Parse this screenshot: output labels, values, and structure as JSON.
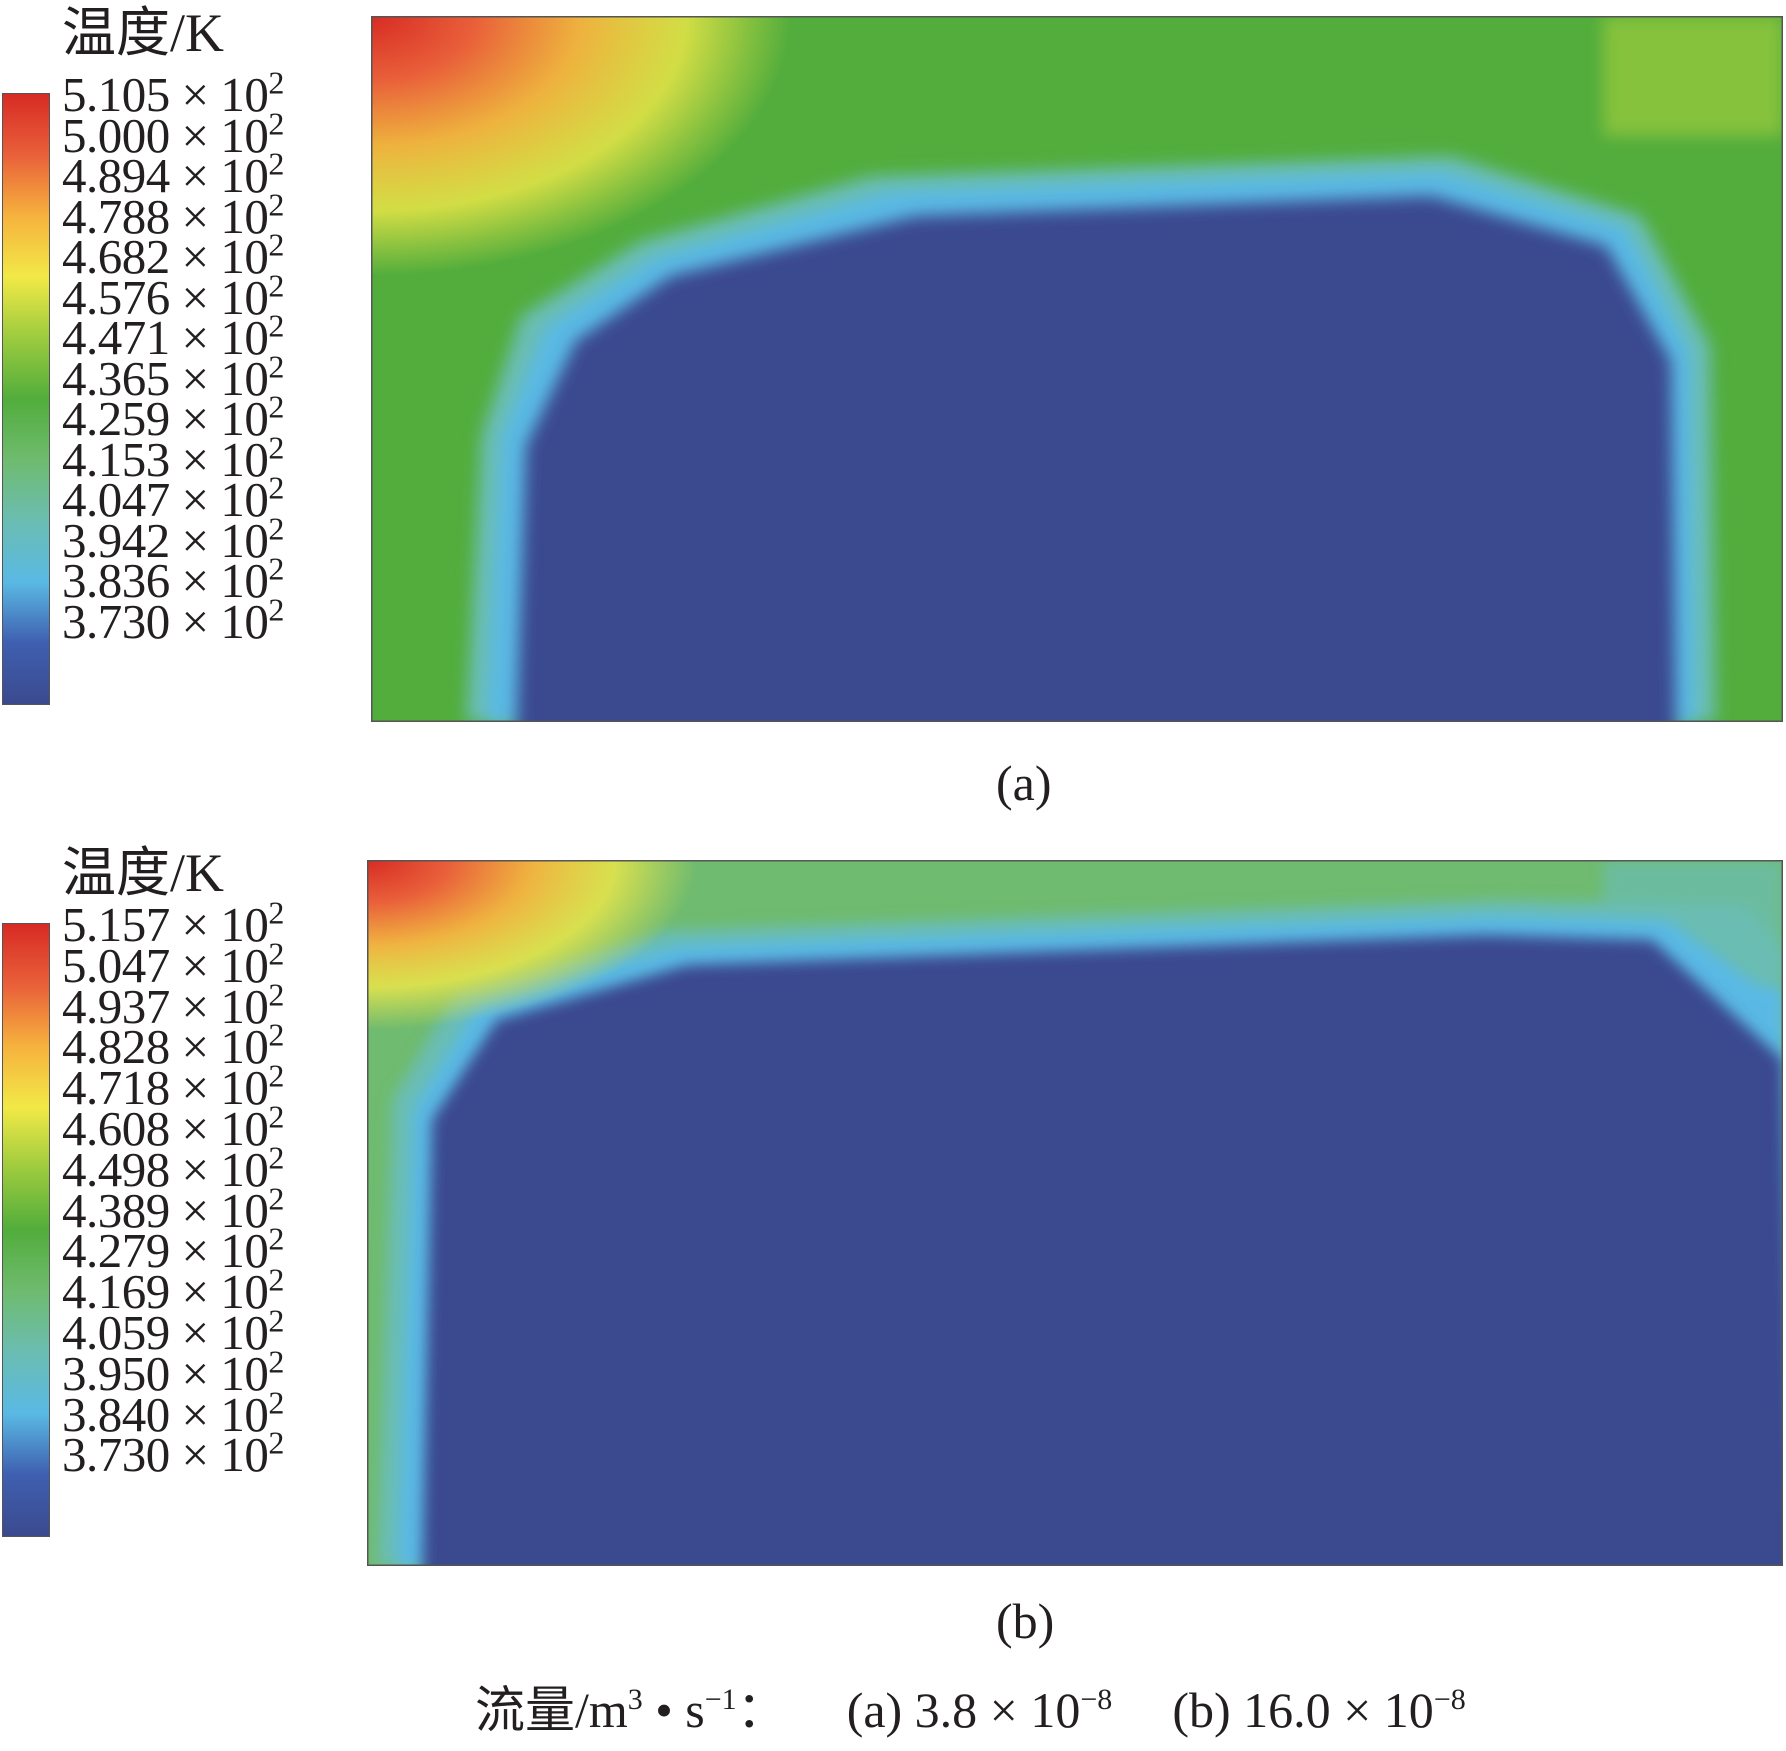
{
  "footer": {
    "label": "流量/m",
    "label_exp": "3",
    "label_mid": " • s",
    "label_exp2": "−1",
    "label_end": "：",
    "a": "(a) 3.8 × 10",
    "a_exp": "−8",
    "b": "(b) 16.0 × 10",
    "b_exp": "−8"
  },
  "colormap": [
    "#3b4a8f",
    "#3f5fb0",
    "#5ab9e4",
    "#6bbdb2",
    "#6fbb6f",
    "#52ad3c",
    "#9ccb3e",
    "#f2e947",
    "#f6b23e",
    "#e9603a",
    "#d72b24"
  ],
  "chart_data": [
    {
      "type": "heatmap",
      "panel_label": "(a)",
      "colorbar_title": "温度/K",
      "flow_rate": "3.8 × 10−8",
      "range": [
        373.0,
        510.5
      ],
      "tick_values": [
        510.5,
        500.0,
        489.4,
        478.8,
        468.2,
        457.6,
        447.1,
        436.5,
        425.9,
        415.3,
        404.7,
        394.2,
        383.6,
        373.0
      ],
      "tick_labels": [
        {
          "mantissa": "5.105 × 10",
          "exp": "2"
        },
        {
          "mantissa": "5.000 × 10",
          "exp": "2"
        },
        {
          "mantissa": "4.894 × 10",
          "exp": "2"
        },
        {
          "mantissa": "4.788 × 10",
          "exp": "2"
        },
        {
          "mantissa": "4.682 × 10",
          "exp": "2"
        },
        {
          "mantissa": "4.576 × 10",
          "exp": "2"
        },
        {
          "mantissa": "4.471 × 10",
          "exp": "2"
        },
        {
          "mantissa": "4.365 × 10",
          "exp": "2"
        },
        {
          "mantissa": "4.259 × 10",
          "exp": "2"
        },
        {
          "mantissa": "4.153 × 10",
          "exp": "2"
        },
        {
          "mantissa": "4.047 × 10",
          "exp": "2"
        },
        {
          "mantissa": "3.942 × 10",
          "exp": "2"
        },
        {
          "mantissa": "3.836 × 10",
          "exp": "2"
        },
        {
          "mantissa": "3.730 × 10",
          "exp": "2"
        }
      ],
      "hot_corner": "top-left",
      "cold_core_temperature": 373.0
    },
    {
      "type": "heatmap",
      "panel_label": "(b)",
      "colorbar_title": "温度/K",
      "flow_rate": "16.0 × 10−8",
      "range": [
        373.0,
        515.7
      ],
      "tick_values": [
        515.7,
        504.7,
        493.7,
        482.8,
        471.8,
        460.8,
        449.8,
        438.9,
        427.9,
        416.9,
        405.9,
        395.0,
        384.0,
        373.0
      ],
      "tick_labels": [
        {
          "mantissa": "5.157 × 10",
          "exp": "2"
        },
        {
          "mantissa": "5.047 × 10",
          "exp": "2"
        },
        {
          "mantissa": "4.937 × 10",
          "exp": "2"
        },
        {
          "mantissa": "4.828 × 10",
          "exp": "2"
        },
        {
          "mantissa": "4.718 × 10",
          "exp": "2"
        },
        {
          "mantissa": "4.608 × 10",
          "exp": "2"
        },
        {
          "mantissa": "4.498 × 10",
          "exp": "2"
        },
        {
          "mantissa": "4.389 × 10",
          "exp": "2"
        },
        {
          "mantissa": "4.279 × 10",
          "exp": "2"
        },
        {
          "mantissa": "4.169 × 10",
          "exp": "2"
        },
        {
          "mantissa": "4.059 × 10",
          "exp": "2"
        },
        {
          "mantissa": "3.950 × 10",
          "exp": "2"
        },
        {
          "mantissa": "3.840 × 10",
          "exp": "2"
        },
        {
          "mantissa": "3.730 × 10",
          "exp": "2"
        }
      ],
      "hot_corner": "top-left",
      "cold_core_temperature": 373.0
    }
  ]
}
